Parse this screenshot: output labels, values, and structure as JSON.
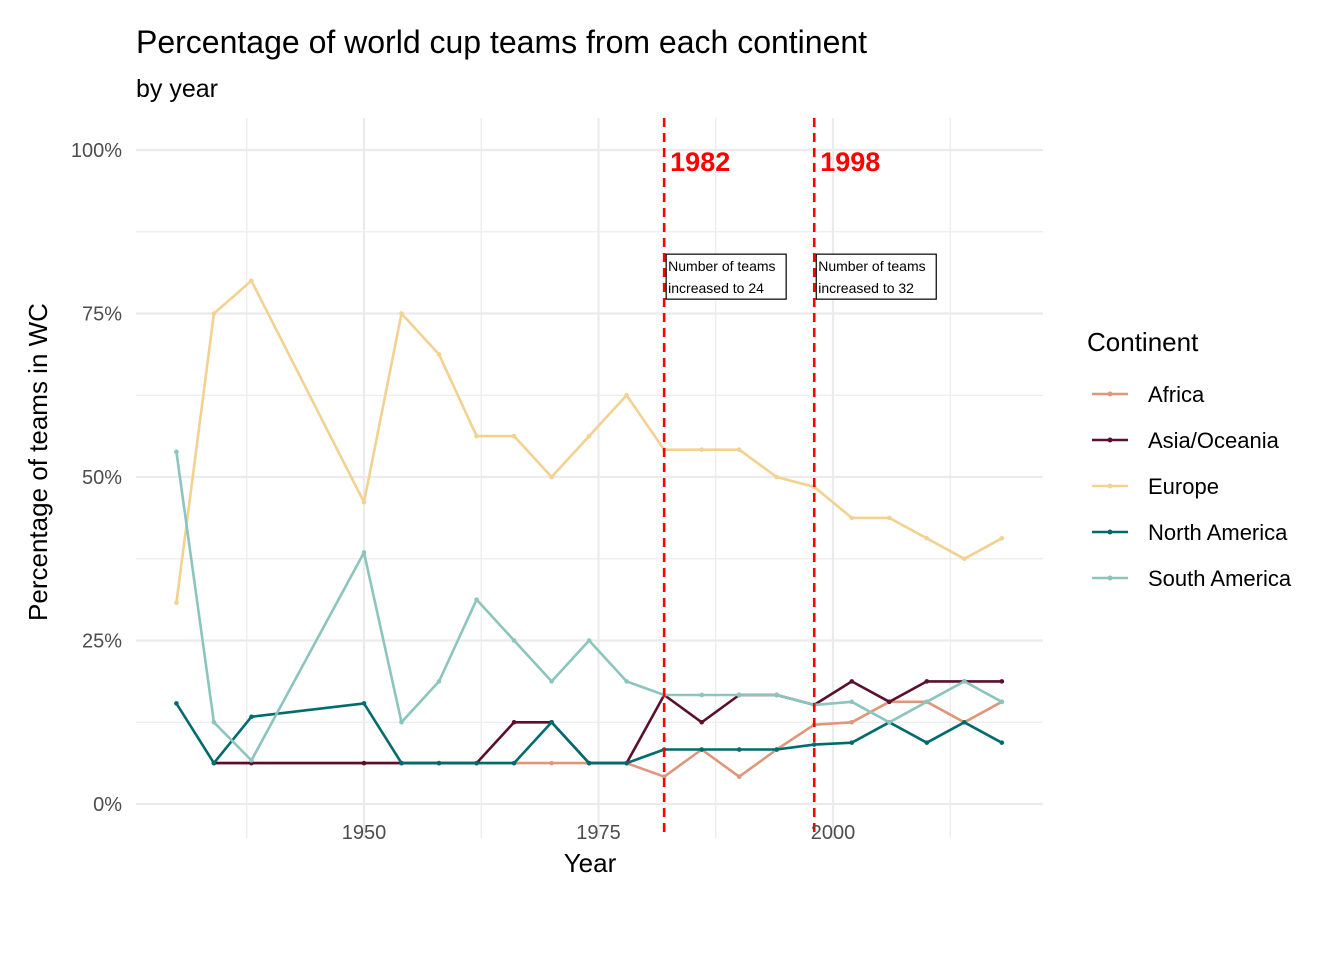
{
  "chart_data": {
    "type": "line",
    "title": "Percentage of world cup teams from each continent",
    "subtitle": "by year",
    "xlabel": "Year",
    "ylabel": "Percentage of teams in WC",
    "xlim": [
      1926,
      2022
    ],
    "ylim": [
      0,
      1.05
    ],
    "x_ticks": [
      1950,
      1975,
      2000
    ],
    "x_tick_labels": [
      "1950",
      "1975",
      "2000"
    ],
    "y_ticks": [
      0,
      0.25,
      0.5,
      0.75,
      1.0
    ],
    "y_tick_labels": [
      "0%",
      "25%",
      "50%",
      "75%",
      "100%"
    ],
    "grid": true,
    "legend": {
      "title": "Continent",
      "placement": "right"
    },
    "series": [
      {
        "name": "Africa",
        "color": "#E0967A",
        "x": [
          1934,
          1938,
          1950,
          1954,
          1958,
          1962,
          1966,
          1970,
          1974,
          1978,
          1982,
          1986,
          1990,
          1994,
          1998,
          2002,
          2006,
          2010,
          2014,
          2018
        ],
        "values": [
          0.0625,
          0.0625,
          0.0625,
          0.0625,
          0.0625,
          0.0625,
          0.0625,
          0.0625,
          0.0625,
          0.0625,
          0.0417,
          0.0833,
          0.0417,
          0.0833,
          0.1212,
          0.125,
          0.1562,
          0.1562,
          0.125,
          0.1562
        ]
      },
      {
        "name": "Asia/Oceania",
        "color": "#5A0F2E",
        "x": [
          1934,
          1938,
          1950,
          1954,
          1958,
          1962,
          1966,
          1970,
          1974,
          1978,
          1982,
          1986,
          1990,
          1994,
          1998,
          2002,
          2006,
          2010,
          2014,
          2018
        ],
        "values": [
          0.0625,
          0.0625,
          0.0625,
          0.0625,
          0.0625,
          0.0625,
          0.125,
          0.125,
          0.0625,
          0.0625,
          0.1667,
          0.125,
          0.1667,
          0.1667,
          0.1515,
          0.1875,
          0.1562,
          0.1875,
          0.1875,
          0.1875
        ]
      },
      {
        "name": "Europe",
        "color": "#F2D191",
        "x": [
          1930,
          1934,
          1938,
          1950,
          1954,
          1958,
          1962,
          1966,
          1970,
          1974,
          1978,
          1982,
          1986,
          1990,
          1994,
          1998,
          2002,
          2006,
          2010,
          2014,
          2018
        ],
        "values": [
          0.3077,
          0.75,
          0.8,
          0.4615,
          0.75,
          0.6875,
          0.5625,
          0.5625,
          0.5,
          0.5625,
          0.625,
          0.5417,
          0.5417,
          0.5417,
          0.5,
          0.4848,
          0.4375,
          0.4375,
          0.4062,
          0.375,
          0.4062
        ]
      },
      {
        "name": "North America",
        "color": "#006B6E",
        "x": [
          1930,
          1934,
          1938,
          1950,
          1954,
          1958,
          1962,
          1966,
          1970,
          1974,
          1978,
          1982,
          1986,
          1990,
          1994,
          1998,
          2002,
          2006,
          2010,
          2014,
          2018
        ],
        "values": [
          0.1538,
          0.0625,
          0.1333,
          0.1538,
          0.0625,
          0.0625,
          0.0625,
          0.0625,
          0.125,
          0.0625,
          0.0625,
          0.0833,
          0.0833,
          0.0833,
          0.0833,
          0.0909,
          0.0938,
          0.125,
          0.0938,
          0.125,
          0.0938
        ]
      },
      {
        "name": "South America",
        "color": "#8CC5BE",
        "x": [
          1930,
          1934,
          1938,
          1950,
          1954,
          1958,
          1962,
          1966,
          1970,
          1974,
          1978,
          1982,
          1986,
          1990,
          1994,
          1998,
          2002,
          2006,
          2010,
          2014,
          2018
        ],
        "values": [
          0.5385,
          0.125,
          0.0667,
          0.3846,
          0.125,
          0.1875,
          0.3125,
          0.25,
          0.1875,
          0.25,
          0.1875,
          0.1667,
          0.1667,
          0.1667,
          0.1667,
          0.1515,
          0.1562,
          0.125,
          0.1562,
          0.1875,
          0.1562
        ]
      }
    ],
    "vlines": [
      {
        "x": 1982,
        "label": "1982",
        "color": "#ff0000",
        "annotation_lines": [
          "Number of teams",
          "increased to 24"
        ],
        "annotation_y": 0.775
      },
      {
        "x": 1998,
        "label": "1998",
        "color": "#ff0000",
        "annotation_lines": [
          "Number of teams",
          "increased to 32"
        ],
        "annotation_y": 0.775
      }
    ]
  }
}
